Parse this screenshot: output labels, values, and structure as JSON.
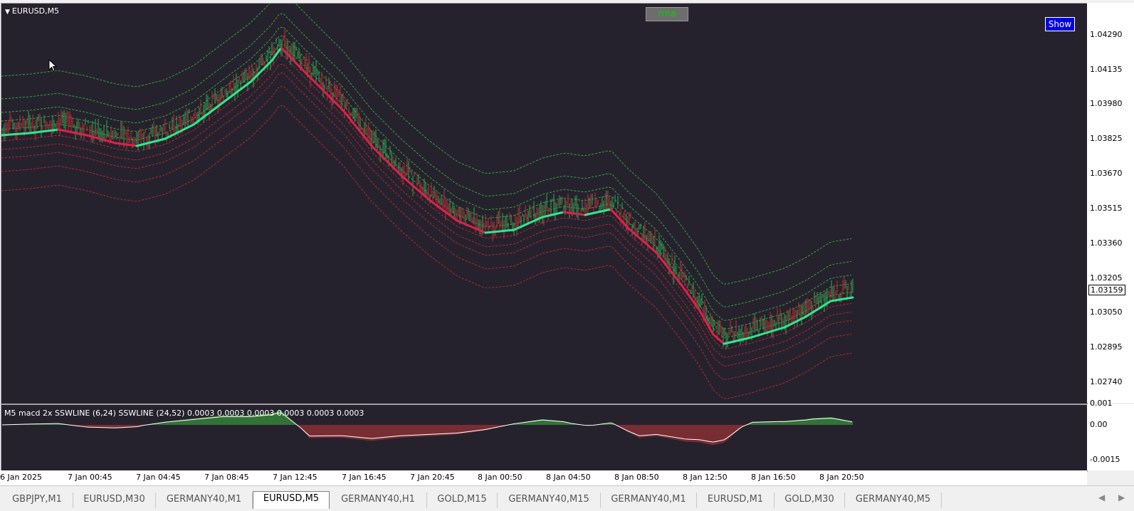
{
  "window": {
    "symbol_title": "EURUSD,M5"
  },
  "buttons": {
    "rma": "rma",
    "show": "Show"
  },
  "price_axis": {
    "labels": [
      "1.04290",
      "1.04135",
      "1.03980",
      "1.03825",
      "1.03670",
      "1.03515",
      "1.03360",
      "1.03205",
      "1.03050",
      "1.02895",
      "1.02740"
    ],
    "current_price": "1.03159"
  },
  "indicator": {
    "title": "M5 macd 2x SSWLINE (6,24) SSWLINE (24,52)  0.0003 0.0003 0.0003 0.0003 0.0003 0.0003",
    "axis_labels": [
      "0.001",
      "0.00",
      "-0.0015"
    ]
  },
  "time_axis": {
    "labels": [
      "6 Jan 2025",
      "7 Jan 00:45",
      "7 Jan 04:45",
      "7 Jan 08:45",
      "7 Jan 12:45",
      "7 Jan 16:45",
      "7 Jan 20:45",
      "8 Jan 00:50",
      "8 Jan 04:50",
      "8 Jan 08:50",
      "8 Jan 12:50",
      "8 Jan 16:50",
      "8 Jan 20:50"
    ]
  },
  "tabs": [
    {
      "label": "GBPJPY,M1",
      "active": false
    },
    {
      "label": "EURUSD,M30",
      "active": false
    },
    {
      "label": "GERMANY40,M1",
      "active": false
    },
    {
      "label": "EURUSD,M5",
      "active": true
    },
    {
      "label": "GERMANY40,H1",
      "active": false
    },
    {
      "label": "GOLD,M15",
      "active": false
    },
    {
      "label": "GERMANY40,M15",
      "active": false
    },
    {
      "label": "GERMANY40,M1",
      "active": false
    },
    {
      "label": "EURUSD,M1",
      "active": false
    },
    {
      "label": "GOLD,M30",
      "active": false
    },
    {
      "label": "GERMANY40,M5",
      "active": false
    }
  ],
  "colors": {
    "background": "#26222d",
    "up_line": "#2fe88c",
    "down_line": "#e0204a",
    "up_candle": "#32a852",
    "down_candle": "#c03038",
    "upper_band": "#2ea83a",
    "lower_band": "#b02830",
    "hist_up": "#3ec23e",
    "hist_down": "#c83838",
    "signal": "#ffffff"
  },
  "icons": {
    "scroll_left": "scroll-left-icon",
    "scroll_right": "scroll-right-icon",
    "cursor": "mouse-cursor-icon"
  }
}
